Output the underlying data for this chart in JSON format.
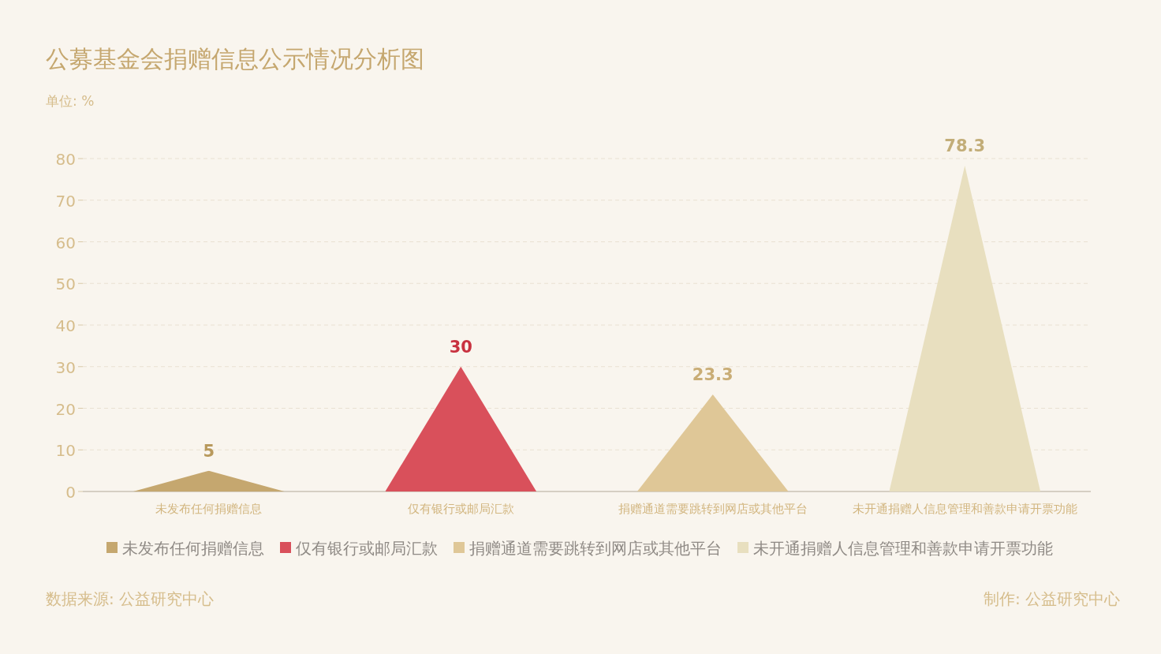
{
  "chart_data": {
    "type": "bar",
    "title": "公募基金会捐赠信息公示情况分析图",
    "subtitle": "单位: %",
    "categories": [
      "未发布任何捐赠信息",
      "仅有银行或邮局汇款",
      "捐赠通道需要跳转到网店或其他平台",
      "未开通捐赠人信息管理和善款申请开票功能"
    ],
    "series": [
      {
        "name": "未发布任何捐赠信息",
        "color": "#c5a76f",
        "values": [
          5,
          null,
          null,
          null
        ]
      },
      {
        "name": "仅有银行或邮局汇款",
        "color": "#d9505b",
        "values": [
          null,
          30,
          null,
          null
        ]
      },
      {
        "name": "捐赠通道需要跳转到网店或其他平台",
        "color": "#dfc797",
        "values": [
          null,
          null,
          23.3,
          null
        ]
      },
      {
        "name": "未开通捐赠人信息管理和善款申请开票功能",
        "color": "#e8dfbf",
        "values": [
          null,
          null,
          null,
          78.3
        ]
      }
    ],
    "ylim": [
      0,
      80
    ],
    "yticks": [
      0,
      10,
      20,
      30,
      40,
      50,
      60,
      70,
      80
    ],
    "grid": "y",
    "legend": "bottom",
    "data_labels": true,
    "annotations": [
      "数据来源: 公益研究中心",
      "制作: 公益研究中心"
    ]
  }
}
